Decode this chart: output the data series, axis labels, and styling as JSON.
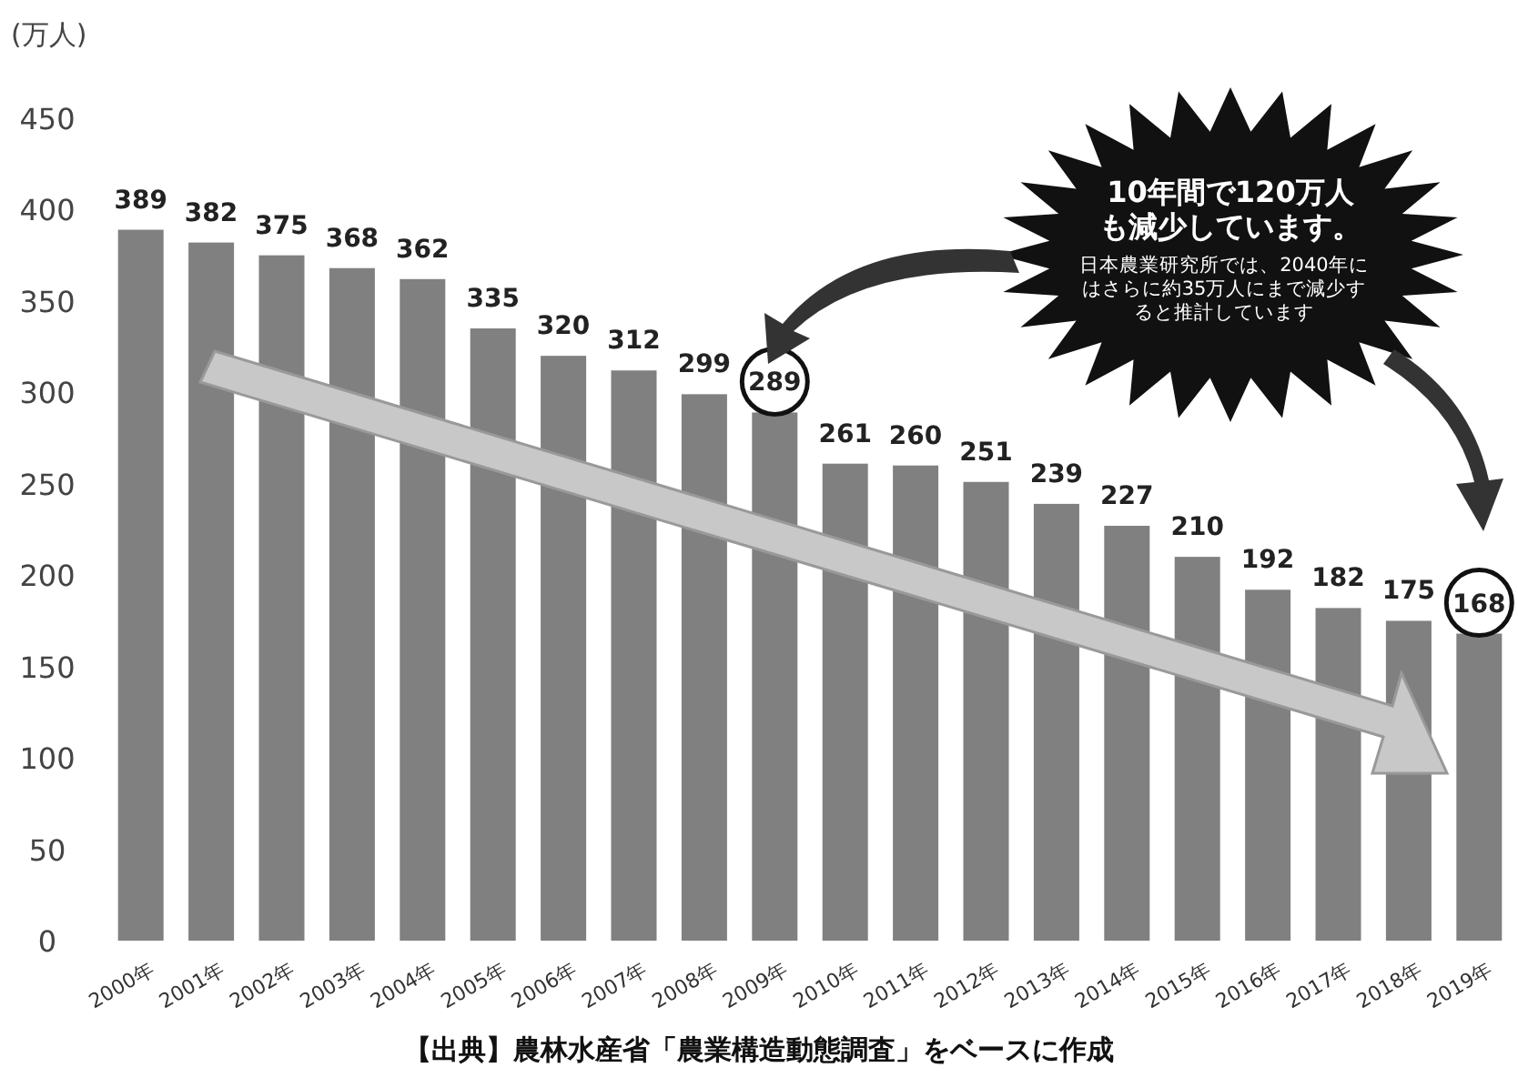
{
  "chart_data": {
    "type": "bar",
    "ylabel": "(万人)",
    "categories": [
      "2000年",
      "2001年",
      "2002年",
      "2003年",
      "2004年",
      "2005年",
      "2006年",
      "2007年",
      "2008年",
      "2009年",
      "2010年",
      "2011年",
      "2012年",
      "2013年",
      "2014年",
      "2015年",
      "2016年",
      "2017年",
      "2018年",
      "2019年"
    ],
    "values": [
      389,
      382,
      375,
      368,
      362,
      335,
      320,
      312,
      299,
      289,
      261,
      260,
      251,
      239,
      227,
      210,
      192,
      182,
      175,
      168
    ],
    "color": "#808080",
    "ylim": [
      0,
      450
    ],
    "yticks": [
      0,
      50,
      100,
      150,
      200,
      250,
      300,
      350,
      400,
      450
    ],
    "data_labels": true,
    "grid": false,
    "annotations": [
      "10年間で120万人も減少しています。",
      "日本農業研究所では、2040年にはさらに約35万人にまで減少すると推計しています",
      "【出典】農林水産省「農業構造動態調査」をベースに作成"
    ]
  }
}
